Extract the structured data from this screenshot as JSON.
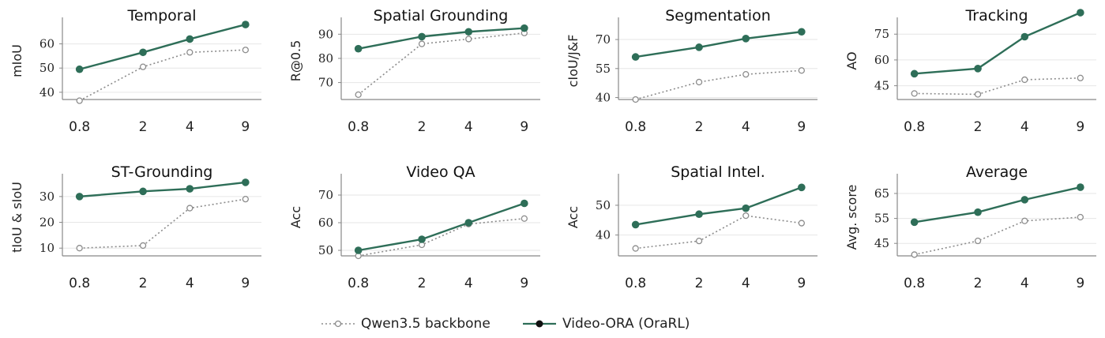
{
  "colors": {
    "model": "#2e6e58",
    "backbone": "#8c8c8c",
    "grid": "#e6e6e6",
    "axis": "#888888"
  },
  "legend": {
    "backbone_label": "Qwen3.5 backbone",
    "model_label": "Video-ORA (OraRL)"
  },
  "chart_data": [
    {
      "type": "line",
      "title": "Temporal",
      "ylabel": "mIoU",
      "x": [
        "0.8",
        "2",
        "4",
        "9"
      ],
      "yticks": [
        40,
        50,
        60
      ],
      "ylim": [
        37,
        69
      ],
      "series": [
        {
          "name": "Qwen3.5 backbone",
          "values": [
            36.5,
            50.5,
            56.5,
            57.5
          ]
        },
        {
          "name": "Video-ORA (OraRL)",
          "values": [
            49.5,
            56.5,
            62,
            68
          ]
        }
      ]
    },
    {
      "type": "line",
      "title": "Spatial Grounding",
      "ylabel": "R@0.5",
      "x": [
        "0.8",
        "2",
        "4",
        "9"
      ],
      "yticks": [
        70,
        80,
        90
      ],
      "ylim": [
        63,
        95
      ],
      "series": [
        {
          "name": "Qwen3.5 backbone",
          "values": [
            65,
            86,
            88,
            90.5
          ]
        },
        {
          "name": "Video-ORA (OraRL)",
          "values": [
            84,
            89,
            91,
            92.5
          ]
        }
      ]
    },
    {
      "type": "line",
      "title": "Segmentation",
      "ylabel": "cIoU/J&F",
      "x": [
        "0.8",
        "2",
        "4",
        "9"
      ],
      "yticks": [
        40,
        55,
        70
      ],
      "ylim": [
        39,
        79
      ],
      "series": [
        {
          "name": "Qwen3.5 backbone",
          "values": [
            39,
            48,
            52,
            54
          ]
        },
        {
          "name": "Video-ORA (OraRL)",
          "values": [
            61,
            66,
            70.5,
            74
          ]
        }
      ]
    },
    {
      "type": "line",
      "title": "Tracking",
      "ylabel": "AO",
      "x": [
        "0.8",
        "2",
        "4",
        "9"
      ],
      "yticks": [
        45,
        60,
        75
      ],
      "ylim": [
        37,
        82
      ],
      "series": [
        {
          "name": "Qwen3.5 backbone",
          "values": [
            40.5,
            40,
            48.5,
            49.5
          ]
        },
        {
          "name": "Video-ORA (OraRL)",
          "values": [
            52,
            55,
            73.5,
            87.5
          ]
        }
      ]
    },
    {
      "type": "line",
      "title": "ST-Grounding",
      "ylabel": "tIoU & sIoU",
      "x": [
        "0.8",
        "2",
        "4",
        "9"
      ],
      "yticks": [
        10,
        20,
        30
      ],
      "ylim": [
        7,
        37
      ],
      "series": [
        {
          "name": "Qwen3.5 backbone",
          "values": [
            10,
            11,
            25.5,
            29
          ]
        },
        {
          "name": "Video-ORA (OraRL)",
          "values": [
            30,
            32,
            33,
            35.5
          ]
        }
      ]
    },
    {
      "type": "line",
      "title": "Video QA",
      "ylabel": "Acc",
      "x": [
        "0.8",
        "2",
        "4",
        "9"
      ],
      "yticks": [
        50,
        60,
        70
      ],
      "ylim": [
        48,
        76
      ],
      "series": [
        {
          "name": "Qwen3.5 backbone",
          "values": [
            48,
            52,
            59.5,
            61.5
          ]
        },
        {
          "name": "Video-ORA (OraRL)",
          "values": [
            50,
            54,
            60,
            67
          ]
        }
      ]
    },
    {
      "type": "line",
      "title": "Spatial Intel.",
      "ylabel": "Acc",
      "x": [
        "0.8",
        "2",
        "4",
        "9"
      ],
      "yticks": [
        40,
        50
      ],
      "ylim": [
        33,
        59
      ],
      "series": [
        {
          "name": "Qwen3.5 backbone",
          "values": [
            35.5,
            38,
            46.5,
            44
          ]
        },
        {
          "name": "Video-ORA (OraRL)",
          "values": [
            43.5,
            47,
            49,
            56
          ]
        }
      ]
    },
    {
      "type": "line",
      "title": "Average",
      "ylabel": "Avg. score",
      "x": [
        "0.8",
        "2",
        "4",
        "9"
      ],
      "yticks": [
        45,
        55,
        65
      ],
      "ylim": [
        40,
        71
      ],
      "series": [
        {
          "name": "Qwen3.5 backbone",
          "values": [
            40.5,
            46,
            54,
            55.5
          ]
        },
        {
          "name": "Video-ORA (OraRL)",
          "values": [
            53.5,
            57.5,
            62.5,
            67.5
          ]
        }
      ]
    }
  ]
}
